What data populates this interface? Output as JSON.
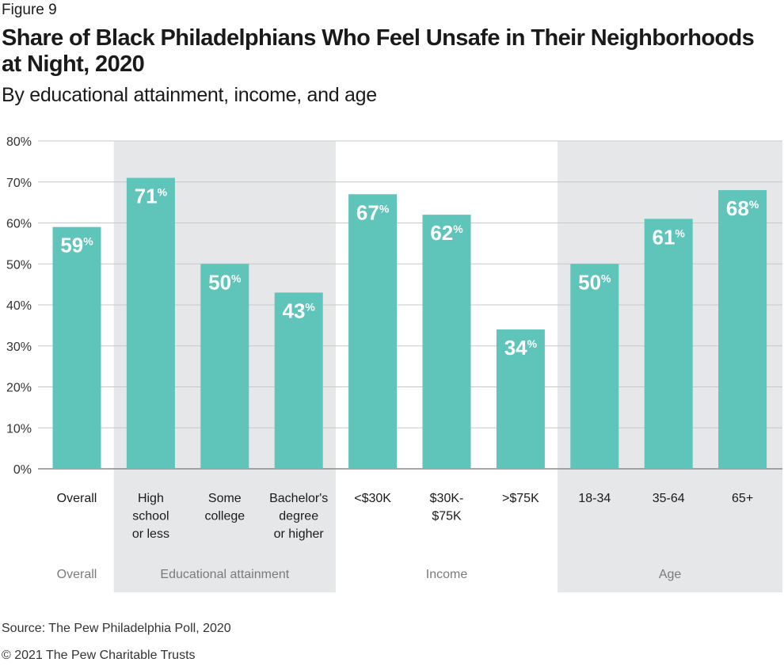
{
  "figure_label": "Figure 9",
  "title": "Share of Black Philadelphians Who Feel Unsafe in Their Neighborhoods at Night, 2020",
  "subtitle": "By educational attainment, income, and age",
  "source": "Source: The Pew Philadelphia Poll, 2020",
  "copyright": "© 2021 The Pew Charitable Trusts",
  "colors": {
    "bar": "#5fc4ba",
    "band": "#e6e7e8",
    "grid": "#c8c8c8",
    "axis": "#8a8a8a",
    "label": "#ffffff"
  },
  "chart_data": {
    "type": "bar",
    "ylim": [
      0,
      80
    ],
    "y_ticks": [
      "0%",
      "10%",
      "20%",
      "30%",
      "40%",
      "50%",
      "60%",
      "70%",
      "80%"
    ],
    "grid": true,
    "categories": [
      {
        "label": [
          "Overall"
        ],
        "value": 59,
        "group": 0
      },
      {
        "label": [
          "High",
          "school",
          "or less"
        ],
        "value": 71,
        "group": 1
      },
      {
        "label": [
          "Some",
          "college"
        ],
        "value": 50,
        "group": 1
      },
      {
        "label": [
          "Bachelor's",
          "degree",
          "or higher"
        ],
        "value": 43,
        "group": 1
      },
      {
        "label": [
          "<$30K"
        ],
        "value": 67,
        "group": 2
      },
      {
        "label": [
          "$30K-",
          "$75K"
        ],
        "value": 62,
        "group": 2
      },
      {
        "label": [
          ">$75K"
        ],
        "value": 34,
        "group": 2
      },
      {
        "label": [
          "18-34"
        ],
        "value": 50,
        "group": 3
      },
      {
        "label": [
          "35-64"
        ],
        "value": 61,
        "group": 3
      },
      {
        "label": [
          "65+"
        ],
        "value": 68,
        "group": 3
      }
    ],
    "value_suffix": "%",
    "groups": [
      {
        "name": "Overall",
        "shaded": false
      },
      {
        "name": "Educational attainment",
        "shaded": true
      },
      {
        "name": "Income",
        "shaded": false
      },
      {
        "name": "Age",
        "shaded": true
      }
    ]
  }
}
